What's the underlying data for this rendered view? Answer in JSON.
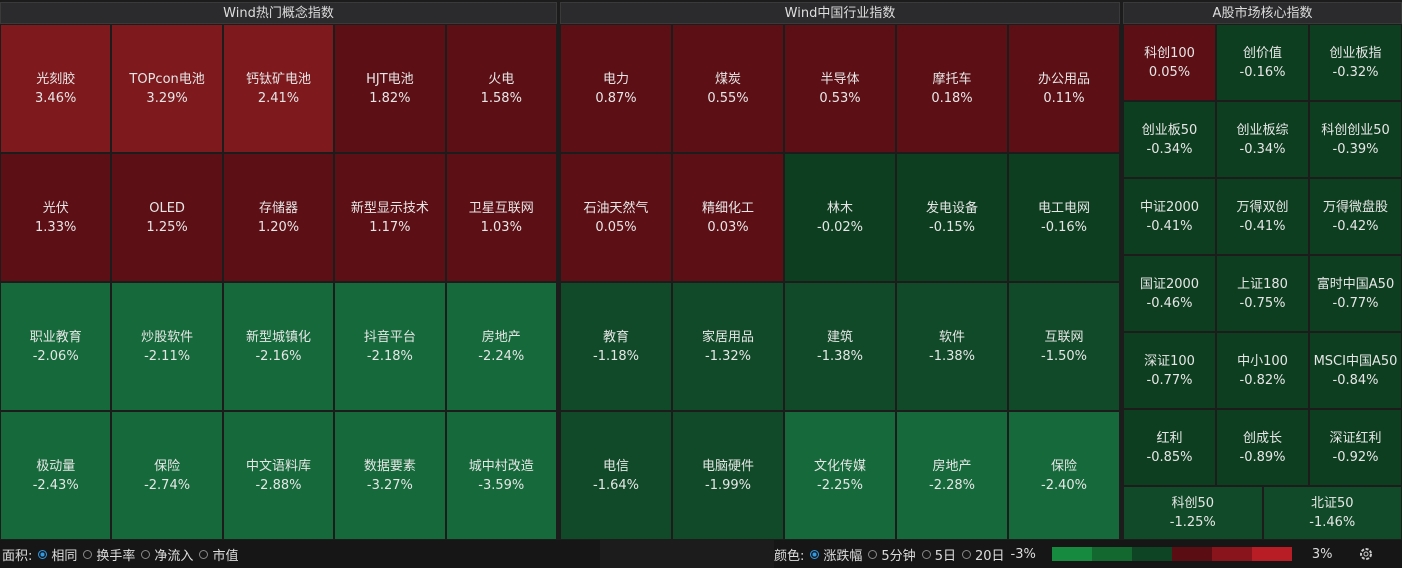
{
  "panels": [
    {
      "title": "Wind热门概念指数",
      "cells": [
        {
          "name": "光刻胶",
          "change": "3.46%"
        },
        {
          "name": "TOPcon电池",
          "change": "3.29%"
        },
        {
          "name": "钙钛矿电池",
          "change": "2.41%"
        },
        {
          "name": "HJT电池",
          "change": "1.82%"
        },
        {
          "name": "火电",
          "change": "1.58%"
        },
        {
          "name": "光伏",
          "change": "1.33%"
        },
        {
          "name": "OLED",
          "change": "1.25%"
        },
        {
          "name": "存储器",
          "change": "1.20%"
        },
        {
          "name": "新型显示技术",
          "change": "1.17%"
        },
        {
          "name": "卫星互联网",
          "change": "1.03%"
        },
        {
          "name": "职业教育",
          "change": "-2.06%"
        },
        {
          "name": "炒股软件",
          "change": "-2.11%"
        },
        {
          "name": "新型城镇化",
          "change": "-2.16%"
        },
        {
          "name": "抖音平台",
          "change": "-2.18%"
        },
        {
          "name": "房地产",
          "change": "-2.24%"
        },
        {
          "name": "极动量",
          "change": "-2.43%"
        },
        {
          "name": "保险",
          "change": "-2.74%"
        },
        {
          "name": "中文语料库",
          "change": "-2.88%"
        },
        {
          "name": "数据要素",
          "change": "-3.27%"
        },
        {
          "name": "城中村改造",
          "change": "-3.59%"
        }
      ]
    },
    {
      "title": "Wind中国行业指数",
      "cells": [
        {
          "name": "电力",
          "change": "0.87%"
        },
        {
          "name": "煤炭",
          "change": "0.55%"
        },
        {
          "name": "半导体",
          "change": "0.53%"
        },
        {
          "name": "摩托车",
          "change": "0.18%"
        },
        {
          "name": "办公用品",
          "change": "0.11%"
        },
        {
          "name": "石油天然气",
          "change": "0.05%"
        },
        {
          "name": "精细化工",
          "change": "0.03%"
        },
        {
          "name": "林木",
          "change": "-0.02%"
        },
        {
          "name": "发电设备",
          "change": "-0.15%"
        },
        {
          "name": "电工电网",
          "change": "-0.16%"
        },
        {
          "name": "教育",
          "change": "-1.18%"
        },
        {
          "name": "家居用品",
          "change": "-1.32%"
        },
        {
          "name": "建筑",
          "change": "-1.38%"
        },
        {
          "name": "软件",
          "change": "-1.38%"
        },
        {
          "name": "互联网",
          "change": "-1.50%"
        },
        {
          "name": "电信",
          "change": "-1.64%"
        },
        {
          "name": "电脑硬件",
          "change": "-1.99%"
        },
        {
          "name": "文化传媒",
          "change": "-2.25%"
        },
        {
          "name": "房地产",
          "change": "-2.28%"
        },
        {
          "name": "保险",
          "change": "-2.40%"
        }
      ]
    },
    {
      "title": "A股市场核心指数",
      "cells": [
        {
          "name": "科创100",
          "change": "0.05%"
        },
        {
          "name": "创价值",
          "change": "-0.16%"
        },
        {
          "name": "创业板指",
          "change": "-0.32%"
        },
        {
          "name": "创业板50",
          "change": "-0.34%"
        },
        {
          "name": "创业板综",
          "change": "-0.34%"
        },
        {
          "name": "科创创业50",
          "change": "-0.39%"
        },
        {
          "name": "中证2000",
          "change": "-0.41%"
        },
        {
          "name": "万得双创",
          "change": "-0.41%"
        },
        {
          "name": "万得微盘股",
          "change": "-0.42%"
        },
        {
          "name": "国证2000",
          "change": "-0.46%"
        },
        {
          "name": "上证180",
          "change": "-0.75%"
        },
        {
          "name": "富时中国A50",
          "change": "-0.77%"
        },
        {
          "name": "深证100",
          "change": "-0.77%"
        },
        {
          "name": "中小100",
          "change": "-0.82%"
        },
        {
          "name": "MSCI中国A50",
          "change": "-0.84%"
        },
        {
          "name": "红利",
          "change": "-0.85%"
        },
        {
          "name": "创成长",
          "change": "-0.89%"
        },
        {
          "name": "深证红利",
          "change": "-0.92%"
        },
        {
          "name": "科创50",
          "change": "-1.25%"
        },
        {
          "name": "北证50",
          "change": "-1.46%"
        }
      ]
    }
  ],
  "footer": {
    "area_label": "面积:",
    "area_options": [
      {
        "label": "相同",
        "selected": true
      },
      {
        "label": "换手率",
        "selected": false
      },
      {
        "label": "净流入",
        "selected": false
      },
      {
        "label": "市值",
        "selected": false
      }
    ],
    "color_label": "颜色:",
    "color_options": [
      {
        "label": "涨跌幅",
        "selected": true
      },
      {
        "label": "5分钟",
        "selected": false
      },
      {
        "label": "5日",
        "selected": false
      },
      {
        "label": "20日",
        "selected": false
      }
    ],
    "scale_min": "-3%",
    "scale_max": "3%"
  }
}
